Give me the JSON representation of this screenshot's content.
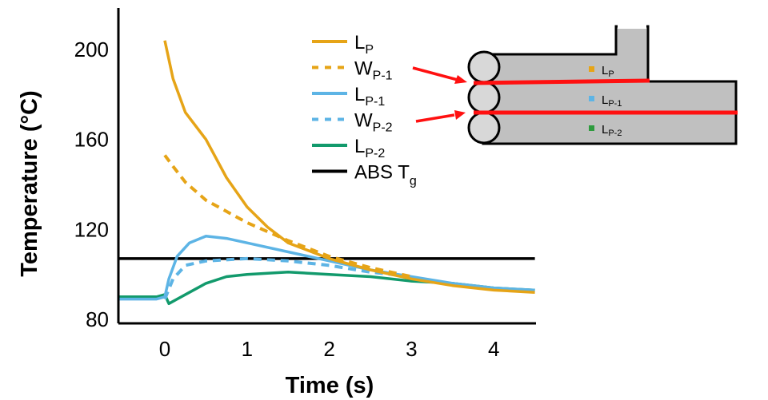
{
  "chart_data": {
    "type": "line",
    "xlabel": "Time (s)",
    "ylabel": "Temperature (°C)",
    "xlim": [
      -0.57,
      4.5
    ],
    "ylim": [
      79,
      220
    ],
    "xticks": [
      0,
      1,
      2,
      3,
      4
    ],
    "yticks": [
      80,
      120,
      160,
      200
    ],
    "grid": false,
    "legend_placement": "top-center",
    "series": [
      {
        "name": "L",
        "sub": "P",
        "color": "#E6A417",
        "dash": false,
        "x": [
          0,
          0.1,
          0.25,
          0.5,
          0.75,
          1,
          1.25,
          1.5,
          2,
          2.5,
          3,
          3.5,
          4,
          4.5
        ],
        "y": [
          204,
          187,
          172,
          160,
          143,
          130,
          121,
          114,
          107,
          102,
          98,
          95,
          93,
          92
        ]
      },
      {
        "name": "W",
        "sub": "P-1",
        "color": "#E6A417",
        "dash": true,
        "x": [
          0,
          0.1,
          0.25,
          0.5,
          0.75,
          1,
          1.5,
          2,
          2.5,
          3
        ],
        "y": [
          153,
          148,
          141,
          133,
          128,
          123,
          115,
          108,
          103,
          99
        ]
      },
      {
        "name": "L",
        "sub": "P-1",
        "color": "#5DB4E5",
        "dash": false,
        "x": [
          -0.55,
          -0.1,
          0,
          0.05,
          0.15,
          0.3,
          0.5,
          0.75,
          1,
          1.5,
          2,
          2.5,
          3,
          3.5,
          4,
          4.5
        ],
        "y": [
          89,
          89,
          90,
          98,
          108,
          114,
          117,
          116,
          114,
          110,
          106,
          102,
          99,
          96,
          94,
          93
        ]
      },
      {
        "name": "W",
        "sub": "P-2",
        "color": "#5DB4E5",
        "dash": true,
        "x": [
          0,
          0.1,
          0.25,
          0.5,
          1,
          1.5,
          2,
          2.5,
          3
        ],
        "y": [
          89,
          98,
          104,
          106,
          107,
          106,
          104,
          101,
          99
        ]
      },
      {
        "name": "L",
        "sub": "P-2",
        "color": "#129A6C",
        "dash": false,
        "x": [
          -0.55,
          -0.1,
          0,
          0.05,
          0.15,
          0.3,
          0.5,
          0.75,
          1,
          1.5,
          2,
          2.5,
          3,
          3.5,
          4,
          4.5
        ],
        "y": [
          90,
          90,
          91,
          87,
          89,
          92,
          96,
          99,
          100,
          101,
          100,
          99,
          97,
          96,
          94,
          93
        ]
      },
      {
        "name": "ABS T",
        "sub": "g",
        "color": "#000000",
        "dash": false,
        "x": [
          -0.57,
          4.5
        ],
        "y": [
          107,
          107
        ]
      }
    ]
  },
  "inset": {
    "labels": [
      {
        "name": "L",
        "sub": "P",
        "color": "#E6A417"
      },
      {
        "name": "L",
        "sub": "P-1",
        "color": "#5DB4E5"
      },
      {
        "name": "L",
        "sub": "P-2",
        "color": "#2E9B3E"
      }
    ],
    "fill": "#C0C0C0",
    "weld_color": "#FF1010"
  }
}
